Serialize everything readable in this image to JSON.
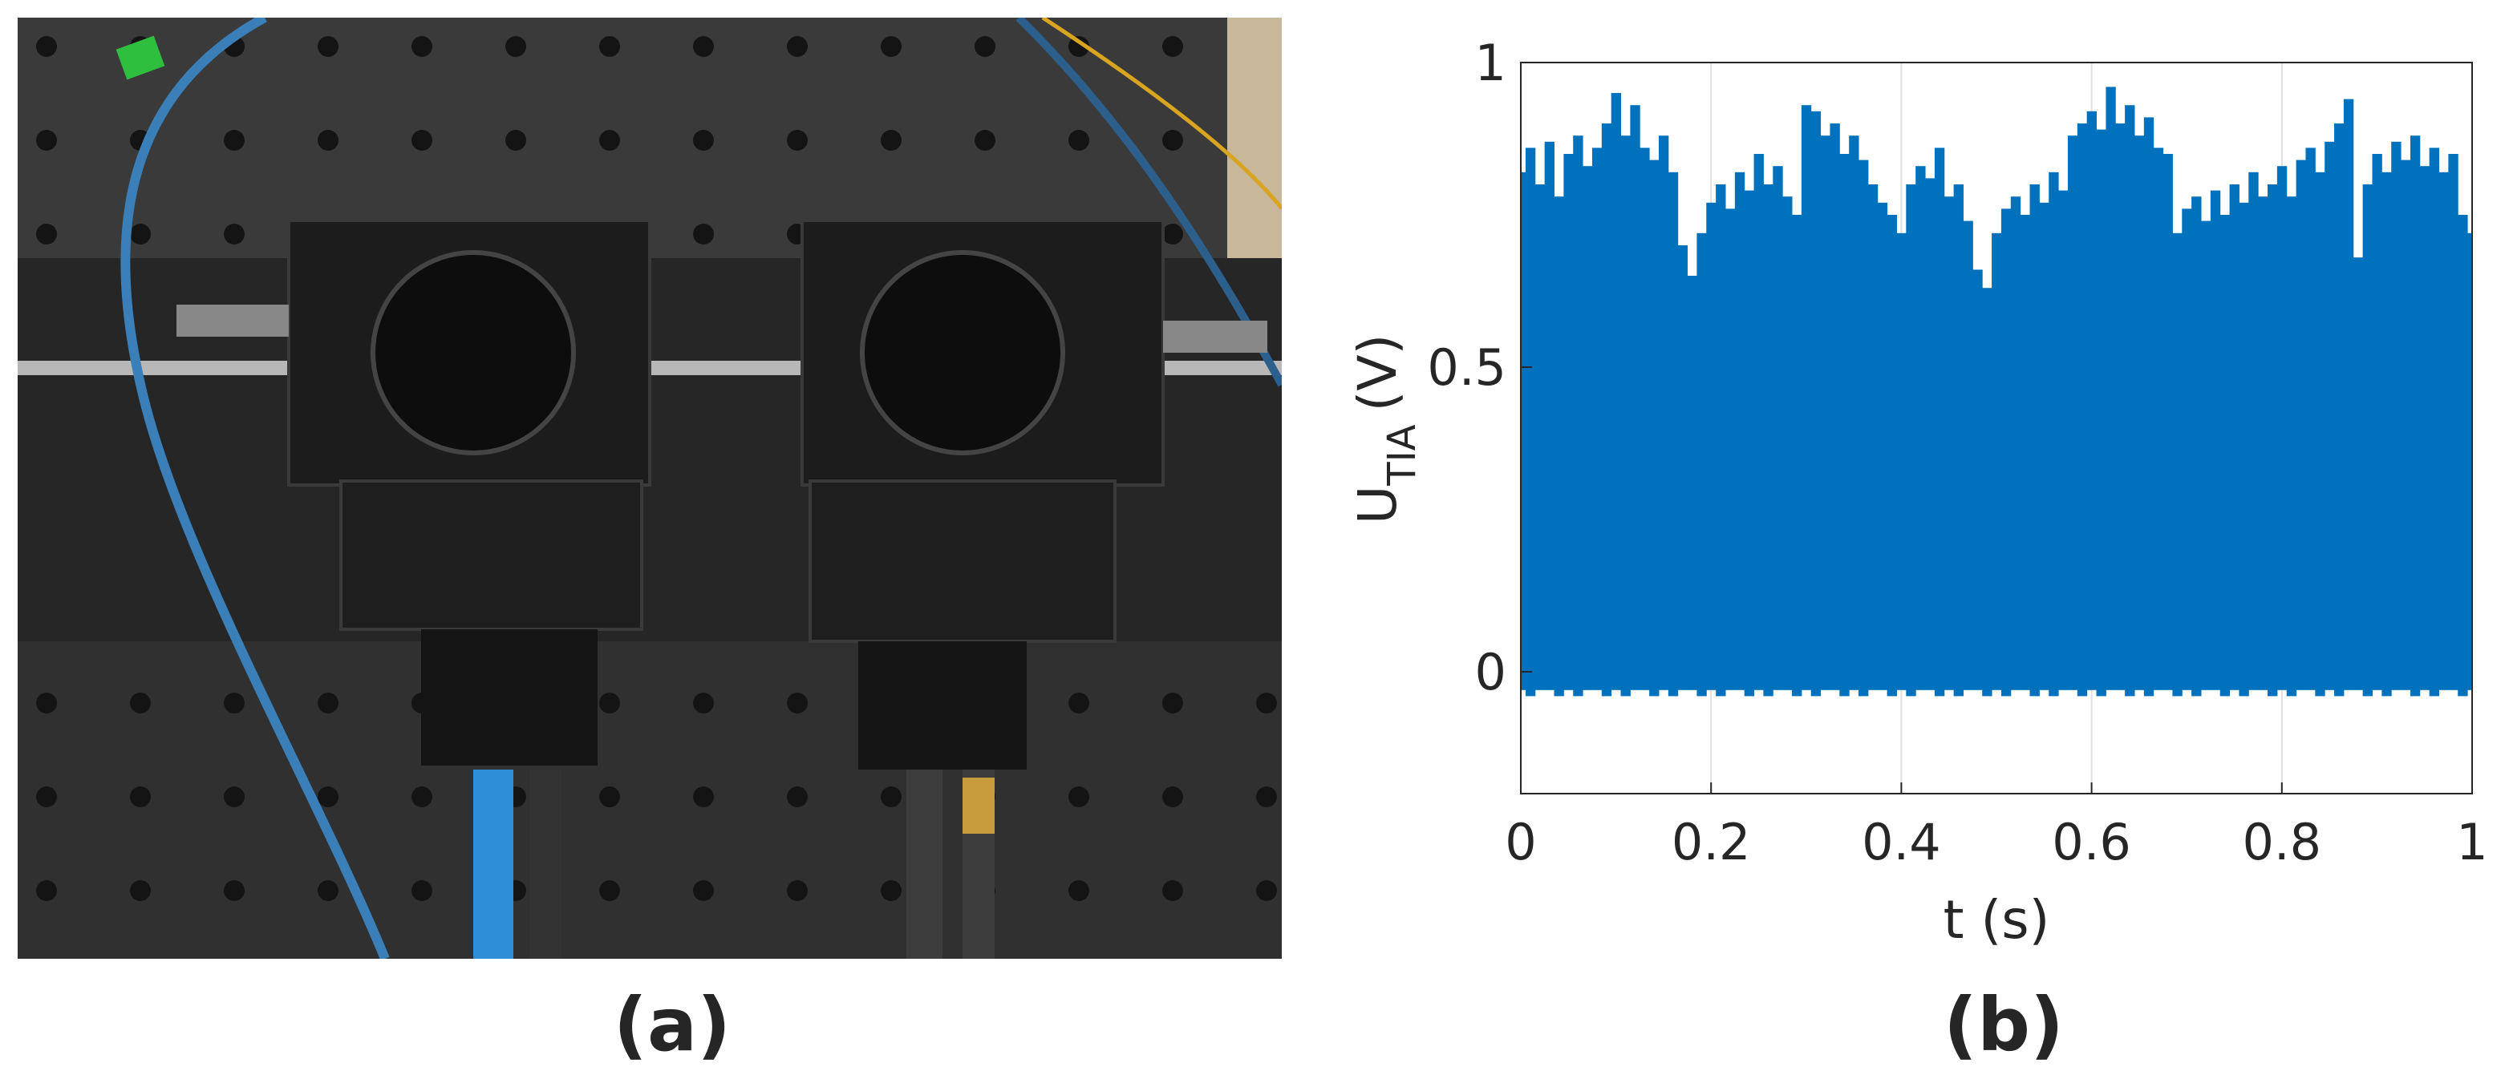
{
  "panel_labels": [
    "(a)",
    "(b)"
  ],
  "chart_data": {
    "type": "band",
    "xlabel": "t (s)",
    "ylabel": {
      "main": "U",
      "sub": "TIA",
      "unit": "(V)"
    },
    "x": [
      0,
      0.01,
      0.02,
      0.03,
      0.04,
      0.05,
      0.06,
      0.07,
      0.08,
      0.09,
      0.1,
      0.11,
      0.12,
      0.13,
      0.14,
      0.15,
      0.16,
      0.17,
      0.18,
      0.19,
      0.2,
      0.21,
      0.22,
      0.23,
      0.24,
      0.25,
      0.26,
      0.27,
      0.28,
      0.29,
      0.3,
      0.31,
      0.32,
      0.33,
      0.34,
      0.35,
      0.36,
      0.37,
      0.38,
      0.39,
      0.4,
      0.41,
      0.42,
      0.43,
      0.44,
      0.45,
      0.46,
      0.47,
      0.48,
      0.49,
      0.5,
      0.51,
      0.52,
      0.53,
      0.54,
      0.55,
      0.56,
      0.57,
      0.58,
      0.59,
      0.6,
      0.61,
      0.62,
      0.63,
      0.64,
      0.65,
      0.66,
      0.67,
      0.68,
      0.69,
      0.7,
      0.71,
      0.72,
      0.73,
      0.74,
      0.75,
      0.76,
      0.77,
      0.78,
      0.79,
      0.8,
      0.81,
      0.82,
      0.83,
      0.84,
      0.85,
      0.86,
      0.87,
      0.88,
      0.89,
      0.9,
      0.91,
      0.92,
      0.93,
      0.94,
      0.95,
      0.96,
      0.97,
      0.98,
      0.99,
      1
    ],
    "series": [
      {
        "color": "#0072bd",
        "values": [
          0.82,
          0.86,
          0.8,
          0.87,
          0.78,
          0.85,
          0.88,
          0.83,
          0.86,
          0.9,
          0.95,
          0.88,
          0.93,
          0.86,
          0.84,
          0.88,
          0.82,
          0.7,
          0.65,
          0.72,
          0.77,
          0.8,
          0.76,
          0.82,
          0.79,
          0.85,
          0.8,
          0.83,
          0.78,
          0.75,
          0.93,
          0.92,
          0.88,
          0.9,
          0.85,
          0.88,
          0.84,
          0.8,
          0.77,
          0.75,
          0.72,
          0.8,
          0.83,
          0.81,
          0.86,
          0.78,
          0.8,
          0.74,
          0.66,
          0.63,
          0.72,
          0.76,
          0.78,
          0.75,
          0.8,
          0.77,
          0.82,
          0.79,
          0.88,
          0.9,
          0.92,
          0.89,
          0.96,
          0.9,
          0.93,
          0.88,
          0.91,
          0.86,
          0.85,
          0.72,
          0.76,
          0.78,
          0.74,
          0.79,
          0.75,
          0.8,
          0.77,
          0.82,
          0.78,
          0.8,
          0.83,
          0.78,
          0.84,
          0.86,
          0.82,
          0.87,
          0.9,
          0.94,
          0.68,
          0.8,
          0.85,
          0.82,
          0.87,
          0.84,
          0.88,
          0.83,
          0.86,
          0.82,
          0.85,
          0.75,
          0.72
        ]
      },
      {
        "color": "#0072bd",
        "values": [
          -0.03,
          -0.04,
          -0.03,
          -0.03,
          -0.04,
          -0.03,
          -0.04,
          -0.03,
          -0.03,
          -0.04,
          -0.03,
          -0.04,
          -0.03,
          -0.03,
          -0.04,
          -0.03,
          -0.04,
          -0.03,
          -0.03,
          -0.04,
          -0.03,
          -0.04,
          -0.03,
          -0.03,
          -0.04,
          -0.03,
          -0.04,
          -0.03,
          -0.03,
          -0.04,
          -0.03,
          -0.04,
          -0.03,
          -0.03,
          -0.04,
          -0.03,
          -0.04,
          -0.03,
          -0.03,
          -0.04,
          -0.03,
          -0.04,
          -0.03,
          -0.03,
          -0.04,
          -0.03,
          -0.04,
          -0.03,
          -0.03,
          -0.04,
          -0.03,
          -0.04,
          -0.03,
          -0.03,
          -0.04,
          -0.03,
          -0.04,
          -0.03,
          -0.03,
          -0.04,
          -0.03,
          -0.04,
          -0.03,
          -0.03,
          -0.04,
          -0.03,
          -0.04,
          -0.03,
          -0.03,
          -0.04,
          -0.03,
          -0.04,
          -0.03,
          -0.03,
          -0.04,
          -0.03,
          -0.04,
          -0.03,
          -0.03,
          -0.04,
          -0.03,
          -0.04,
          -0.03,
          -0.03,
          -0.04,
          -0.03,
          -0.04,
          -0.03,
          -0.03,
          -0.04,
          -0.03,
          -0.04,
          -0.03,
          -0.03,
          -0.04,
          -0.03,
          -0.04,
          -0.03,
          -0.03,
          -0.04,
          -0.03
        ]
      }
    ],
    "xlim": [
      0,
      1
    ],
    "xticks": [
      0,
      0.2,
      0.4,
      0.6,
      0.8,
      1
    ],
    "ylim": [
      -0.2,
      1
    ],
    "yticks": [
      0,
      0.5,
      1
    ],
    "grid": true
  }
}
